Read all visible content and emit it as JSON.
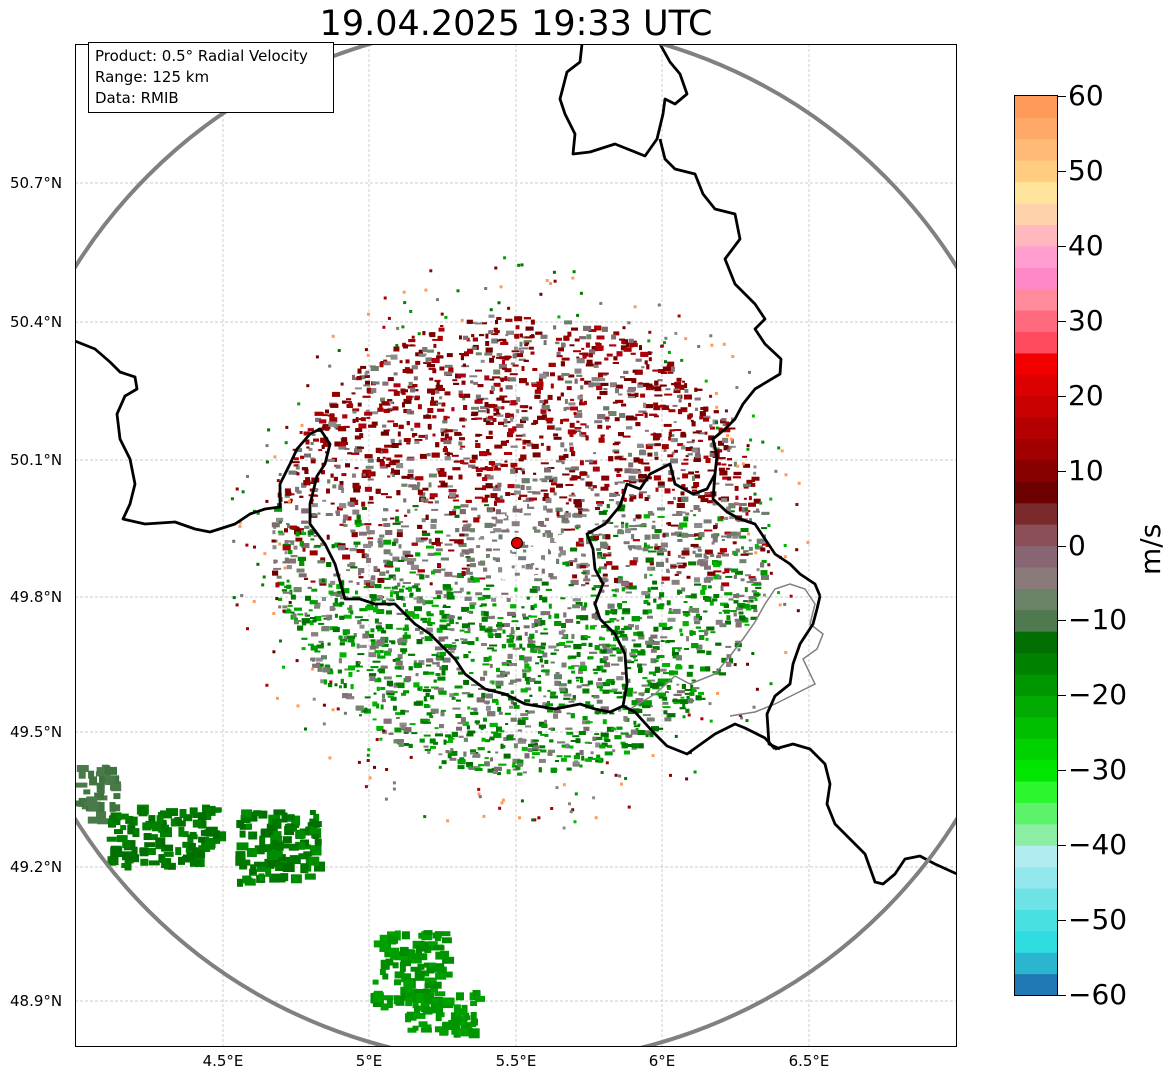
{
  "title": "19.04.2025 19:33 UTC",
  "info_box": {
    "product": "Product: 0.5° Radial Velocity",
    "range": "Range: 125 km",
    "source": "Data: RMIB"
  },
  "lat_labels": [
    "50.7°N",
    "50.4°N",
    "50.1°N",
    "49.8°N",
    "49.5°N",
    "49.2°N",
    "48.9°N"
  ],
  "lon_labels": [
    "4.5°E",
    "5°E",
    "5.5°E",
    "6°E",
    "6.5°E"
  ],
  "colorbar": {
    "unit": "m/s",
    "min": -60,
    "max": 60,
    "tick_labels": [
      "60",
      "50",
      "40",
      "30",
      "20",
      "10",
      "0",
      "−10",
      "−20",
      "−30",
      "−40",
      "−50",
      "−60"
    ],
    "colors": [
      "#1f77b4",
      "#2cb5ce",
      "#2fdde1",
      "#4ae0e2",
      "#6ee3e6",
      "#92e8ec",
      "#b1ecf0",
      "#8ceea2",
      "#5cf26a",
      "#2cf72e",
      "#00e600",
      "#00d200",
      "#00be00",
      "#00aa00",
      "#009600",
      "#008200",
      "#006e00",
      "#4f7a4f",
      "#6a8268",
      "#8b7a7a",
      "#876573",
      "#8a4f57",
      "#7a2a2a",
      "#6d0000",
      "#880000",
      "#a00000",
      "#b40000",
      "#c80000",
      "#dc0000",
      "#f20000",
      "#ff4a5f",
      "#ff6a7e",
      "#ff8a9b",
      "#ff88c8",
      "#ff9ecf",
      "#ffb8be",
      "#ffd3aa",
      "#ffe59c",
      "#ffcc80",
      "#ffba78",
      "#ffa968",
      "#ff9a5a"
    ]
  },
  "radar": {
    "site_marker": "radar-site",
    "range_ring": "125 km range ring"
  },
  "colors": {
    "approaching": "#008c00",
    "receding": "#8b0000",
    "near_zero": "#7a7a7a",
    "border": "#000000",
    "range_ring": "#808080"
  }
}
